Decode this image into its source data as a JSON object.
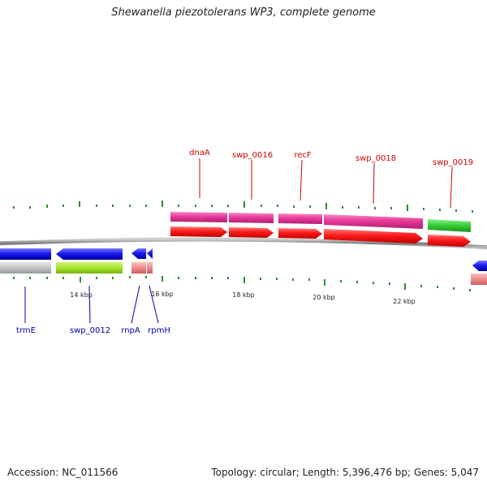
{
  "title": "Shewanella piezotolerans WP3, complete genome",
  "footer": {
    "accession": "Accession: NC_011566",
    "summary": "Topology: circular; Length: 5,396,476 bp; Genes: 5,047"
  },
  "scale_labels": [
    "14 kbp",
    "16 kbp",
    "18 kbp",
    "20 kbp",
    "22 kbp"
  ],
  "top_genes": [
    "dnaA",
    "swp_0016",
    "recF",
    "swp_0018",
    "swp_0019"
  ],
  "bottom_genes": [
    "trmE",
    "swp_0012",
    "rnpA",
    "rpmH"
  ],
  "colors": {
    "backbone": "#8a8a8a",
    "tick": "#2e8b2e",
    "forward_cds": "#ff1a1a",
    "forward_gene": "#e8399a",
    "reverse_cds": "#1a1aee",
    "reverse_gene_gray": "#c4c4c4",
    "reverse_gene_lime": "#a6e22e",
    "reverse_gene_pink": "#ef8c8c",
    "green_gene": "#33cc33",
    "top_label": "#d00000",
    "bottom_label": "#0000b0"
  }
}
